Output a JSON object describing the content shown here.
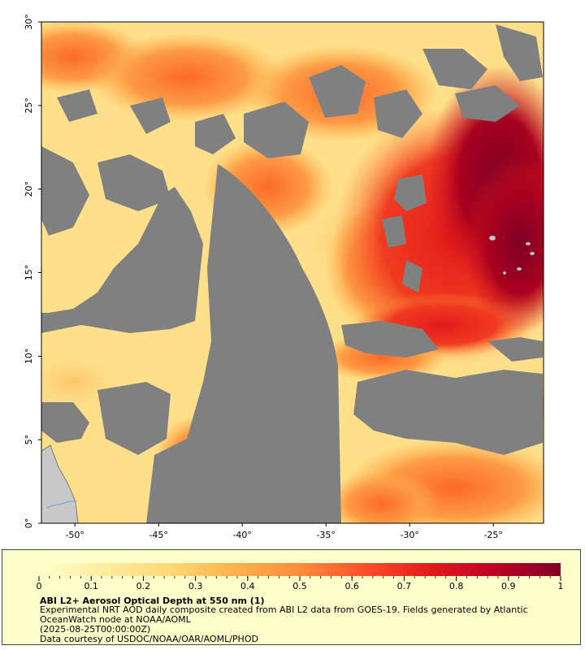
{
  "map": {
    "lat_range": [
      0,
      30
    ],
    "lon_range": [
      -52,
      -22
    ],
    "lat_ticks": [
      {
        "value": 0,
        "label": "0°"
      },
      {
        "value": 5,
        "label": "5°"
      },
      {
        "value": 10,
        "label": "10°"
      },
      {
        "value": 15,
        "label": "15°"
      },
      {
        "value": 20,
        "label": "20°"
      },
      {
        "value": 25,
        "label": "25°"
      },
      {
        "value": 30,
        "label": "30°"
      }
    ],
    "lon_ticks": [
      {
        "value": -50,
        "label": "-50°"
      },
      {
        "value": -45,
        "label": "-45°"
      },
      {
        "value": -40,
        "label": "-40°"
      },
      {
        "value": -35,
        "label": "-35°"
      },
      {
        "value": -30,
        "label": "-30°"
      },
      {
        "value": -25,
        "label": "-25°"
      }
    ],
    "colors": {
      "no_data": "#808080",
      "land": "#c8c8c8",
      "river": "#6aa0d8"
    }
  },
  "colorbar": {
    "min": 0,
    "max": 1,
    "ticks": [
      {
        "value": 0,
        "label": "0"
      },
      {
        "value": 0.1,
        "label": "0.1"
      },
      {
        "value": 0.2,
        "label": "0.2"
      },
      {
        "value": 0.3,
        "label": "0.3"
      },
      {
        "value": 0.4,
        "label": "0.4"
      },
      {
        "value": 0.5,
        "label": "0.5"
      },
      {
        "value": 0.6,
        "label": "0.6"
      },
      {
        "value": 0.7,
        "label": "0.7"
      },
      {
        "value": 0.8,
        "label": "0.8"
      },
      {
        "value": 0.9,
        "label": "0.9"
      },
      {
        "value": 1,
        "label": "1"
      }
    ],
    "stops": [
      "#ffffcc",
      "#ffeda0",
      "#fed976",
      "#feb24c",
      "#fd8d3c",
      "#fc4e2a",
      "#e31a1c",
      "#bd0026",
      "#800026"
    ]
  },
  "legend": {
    "title": "ABI L2+ Aerosol Optical Depth at 550 nm (1)",
    "desc_line1": "Experimental NRT AOD daily composite created from ABI L2 data from GOES-19. Fields generated by Atlantic",
    "desc_line2": "OceanWatch node at NOAA/AOML",
    "date": "(2025-08-25T00:00:00Z)",
    "credit": "Data courtesy of USDOC/NOAA/OAR/AOML/PHOD"
  }
}
